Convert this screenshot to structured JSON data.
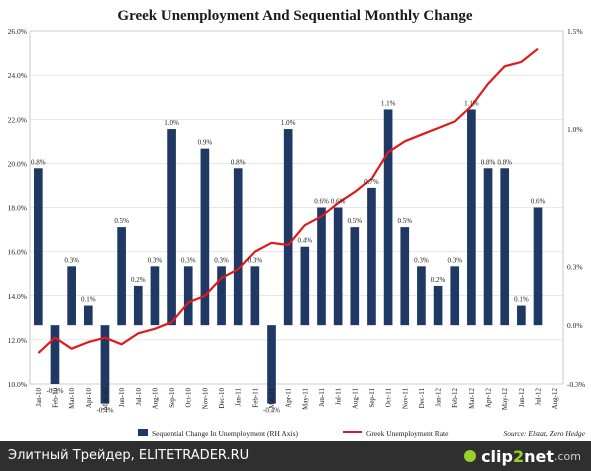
{
  "chart_data": {
    "type": "bar+line",
    "title": "Greek Unemployment And Sequential Monthly Change",
    "source": "Source: Elstat, Zero Hedge",
    "categories": [
      "Jan-10",
      "Feb-10",
      "Mar-10",
      "Apr-10",
      "May-10",
      "Jun-10",
      "Jul-10",
      "Aug-10",
      "Sep-10",
      "Oct-10",
      "Nov-10",
      "Dec-10",
      "Jan-11",
      "Feb-11",
      "Mar-11",
      "Apr-11",
      "May-11",
      "Jun-11",
      "Jul-11",
      "Aug-11",
      "Sep-11",
      "Oct-11",
      "Nov-11",
      "Dec-11",
      "Jan-12",
      "Feb-12",
      "Mar-12",
      "Apr-12",
      "May-12",
      "Jun-12",
      "Jul-12",
      "Aug-12"
    ],
    "x_tick_labels": [
      "Jan-10",
      "Feb-10",
      "Mar-10",
      "Apr-10",
      "May-10",
      "Jun-10",
      "Jul-10",
      "Aug-10",
      "Sep-10",
      "Oct-10",
      "Nov-10",
      "Dec-10",
      "Jan-11",
      "Feb-11",
      "Mar-11",
      "Apr-11",
      "May-11",
      "Jun-11",
      "Jul-11",
      "Aug-11",
      "Sep-11",
      "Oct-11",
      "Nov-11",
      "Dec-11",
      "Jan-12",
      "Feb-12",
      "Mar-12",
      "Apr-12",
      "May-12",
      "Jun-12",
      "Jul-12",
      "Aug-12"
    ],
    "left_axis": {
      "range": [
        10.0,
        26.0
      ],
      "ticks": [
        "10.0%",
        "12.0%",
        "14.0%",
        "16.0%",
        "18.0%",
        "20.0%",
        "22.0%",
        "24.0%",
        "26.0%"
      ]
    },
    "right_axis": {
      "range": [
        -0.3,
        1.5
      ],
      "ticks": [
        "-0.3%",
        "0.0%",
        "0.3%",
        "1.0%",
        "1.5%"
      ]
    },
    "series": [
      {
        "name": "Sequential Change In Unemployment (RH Axis)",
        "kind": "bar",
        "color": "#1f3864",
        "values": [
          0.8,
          -0.3,
          0.3,
          0.1,
          -0.4,
          0.5,
          0.2,
          0.3,
          1.0,
          0.3,
          0.9,
          0.3,
          0.8,
          0.3,
          -0.4,
          1.0,
          0.4,
          0.6,
          0.6,
          0.5,
          0.7,
          1.1,
          0.5,
          0.3,
          0.2,
          0.3,
          1.1,
          0.8,
          0.8,
          0.1,
          0.6,
          null
        ],
        "labels": [
          "0.8%",
          "-0.3%",
          "0.3%",
          "0.1%",
          "-0.4%",
          "0.5%",
          "0.2%",
          "0.3%",
          "1.0%",
          "0.3%",
          "0.9%",
          "0.3%",
          "0.8%",
          "0.3%",
          "-0.4%",
          "1.0%",
          "0.4%",
          "0.6%",
          "0.6%",
          "0.5%",
          "0.7%",
          "1.1%",
          "0.5%",
          "0.3%",
          "0.2%",
          "0.3%",
          "1.1%",
          "0.8%",
          "0.8%",
          "0.1%",
          "0.6%",
          ""
        ]
      },
      {
        "name": "Greek Unemployment Rate",
        "kind": "line",
        "color": "#e01a1a",
        "values": [
          11.4,
          12.1,
          11.6,
          11.9,
          12.1,
          11.8,
          12.3,
          12.5,
          12.8,
          13.7,
          14.0,
          14.8,
          15.2,
          16.0,
          16.4,
          16.3,
          17.2,
          17.6,
          18.2,
          18.7,
          19.3,
          20.5,
          21.0,
          21.3,
          21.6,
          21.9,
          22.6,
          23.6,
          24.4,
          24.6,
          25.2,
          null
        ]
      }
    ],
    "grid": true,
    "legend_position": "bottom"
  },
  "footer": {
    "text": "Элитный Трейдер, ELITETRADER.RU",
    "logo_main": "clip",
    "logo_num": "2",
    "logo_rest": "net",
    "logo_suffix": ".com"
  }
}
